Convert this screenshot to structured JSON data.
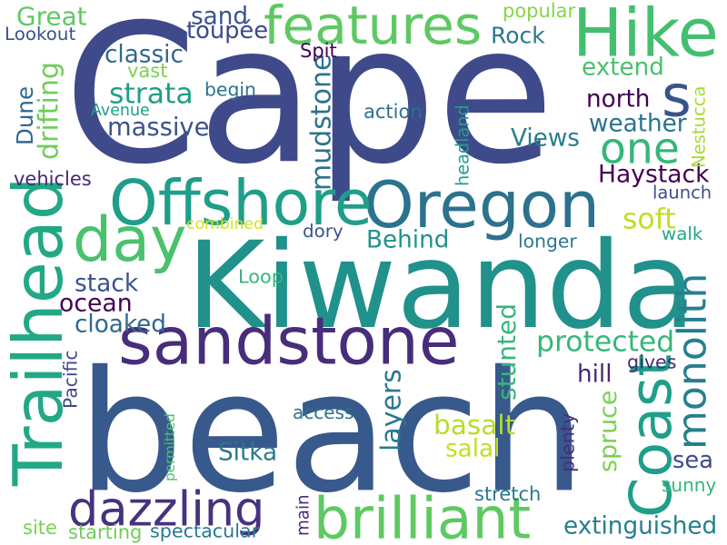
{
  "words": [
    {
      "text": "Cape",
      "color": "#3e4a89",
      "rotate": 0
    },
    {
      "text": "beach",
      "color": "#38598c",
      "rotate": 0
    },
    {
      "text": "Kiwanda",
      "color": "#21918c",
      "rotate": 0
    },
    {
      "text": "sandstone",
      "color": "#472d7b",
      "rotate": 0
    },
    {
      "text": "Trailhead",
      "color": "#22a884",
      "rotate": -90
    },
    {
      "text": "Oregon",
      "color": "#2c728e",
      "rotate": 0
    },
    {
      "text": "Hike",
      "color": "#44bf70",
      "rotate": 0
    },
    {
      "text": "brilliant",
      "color": "#5ec962",
      "rotate": 0
    },
    {
      "text": "day",
      "color": "#4ac16d",
      "rotate": 0
    },
    {
      "text": "Offshore",
      "color": "#1f9e89",
      "rotate": 0
    },
    {
      "text": "features",
      "color": "#5ec962",
      "rotate": 0
    },
    {
      "text": "Coast",
      "color": "#1f9e89",
      "rotate": -90
    },
    {
      "text": "monolith",
      "color": "#277f8e",
      "rotate": -90
    },
    {
      "text": "dazzling",
      "color": "#46327e",
      "rotate": 0
    },
    {
      "text": "one",
      "color": "#35b779",
      "rotate": 0
    },
    {
      "text": "s",
      "color": "#3b528b",
      "rotate": 0
    },
    {
      "text": "protected",
      "color": "#35b779",
      "rotate": 0
    },
    {
      "text": "extinguished",
      "color": "#277f8e",
      "rotate": 0
    },
    {
      "text": "strata",
      "color": "#1f9e89",
      "rotate": 0
    },
    {
      "text": "massive",
      "color": "#3b528b",
      "rotate": 0
    },
    {
      "text": "soft",
      "color": "#bddf26",
      "rotate": 0
    },
    {
      "text": "Haystack",
      "color": "#440154",
      "rotate": 0
    },
    {
      "text": "mudstone",
      "color": "#2c728e",
      "rotate": -90
    },
    {
      "text": "basalt",
      "color": "#b5de2b",
      "rotate": 0
    },
    {
      "text": "salal",
      "color": "#c2df23",
      "rotate": 0
    },
    {
      "text": "stunted",
      "color": "#35b779",
      "rotate": -90
    },
    {
      "text": "layers",
      "color": "#2a788e",
      "rotate": -90
    },
    {
      "text": "Great",
      "color": "#5ec962",
      "rotate": 0
    },
    {
      "text": "sand",
      "color": "#3b528b",
      "rotate": 0
    },
    {
      "text": "toupée",
      "color": "#3e4989",
      "rotate": 0
    },
    {
      "text": "classic",
      "color": "#31688e",
      "rotate": 0
    },
    {
      "text": "Rock",
      "color": "#2a788e",
      "rotate": 0
    },
    {
      "text": "extend",
      "color": "#4ac16d",
      "rotate": 0
    },
    {
      "text": "north",
      "color": "#440154",
      "rotate": 0
    },
    {
      "text": "weather",
      "color": "#2c728e",
      "rotate": 0
    },
    {
      "text": "Views",
      "color": "#277f8e",
      "rotate": 0
    },
    {
      "text": "Dune",
      "color": "#31688e",
      "rotate": -90
    },
    {
      "text": "drifting",
      "color": "#6ece58",
      "rotate": -90
    },
    {
      "text": "stack",
      "color": "#3b528b",
      "rotate": 0
    },
    {
      "text": "ocean",
      "color": "#440154",
      "rotate": 0
    },
    {
      "text": "cloaked",
      "color": "#31688e",
      "rotate": 0
    },
    {
      "text": "Behind",
      "color": "#21918c",
      "rotate": 0
    },
    {
      "text": "hill",
      "color": "#482878",
      "rotate": 0
    },
    {
      "text": "Sitka",
      "color": "#2a788e",
      "rotate": 0
    },
    {
      "text": "spruce",
      "color": "#7ad151",
      "rotate": -90
    },
    {
      "text": "sea",
      "color": "#3e4989",
      "rotate": 0
    },
    {
      "text": "Lookout",
      "color": "#3b528b",
      "rotate": 0
    },
    {
      "text": "vast",
      "color": "#7ad151",
      "rotate": 0
    },
    {
      "text": "begin",
      "color": "#2c728e",
      "rotate": 0
    },
    {
      "text": "Avenue",
      "color": "#1f9e89",
      "rotate": 0
    },
    {
      "text": "Spit",
      "color": "#440154",
      "rotate": 0
    },
    {
      "text": "popular",
      "color": "#86d549",
      "rotate": 0
    },
    {
      "text": "action",
      "color": "#2c728e",
      "rotate": 0
    },
    {
      "text": "headland",
      "color": "#1f9e89",
      "rotate": -90
    },
    {
      "text": "Nestucca",
      "color": "#a5db36",
      "rotate": -90
    },
    {
      "text": "vehicles",
      "color": "#482878",
      "rotate": 0
    },
    {
      "text": "launch",
      "color": "#3b528b",
      "rotate": 0
    },
    {
      "text": "combined",
      "color": "#d2e21b",
      "rotate": 0
    },
    {
      "text": "dory",
      "color": "#3b528b",
      "rotate": 0
    },
    {
      "text": "longer",
      "color": "#2a788e",
      "rotate": 0
    },
    {
      "text": "walk",
      "color": "#22a884",
      "rotate": 0
    },
    {
      "text": "Loop",
      "color": "#35b779",
      "rotate": 0
    },
    {
      "text": "Pacific",
      "color": "#3e4989",
      "rotate": -90
    },
    {
      "text": "gives",
      "color": "#482878",
      "rotate": 0
    },
    {
      "text": "access",
      "color": "#2c728e",
      "rotate": 0
    },
    {
      "text": "plenty",
      "color": "#472d7b",
      "rotate": -90
    },
    {
      "text": "permitted",
      "color": "#4ac16d",
      "rotate": -90
    },
    {
      "text": "sunny",
      "color": "#35b779",
      "rotate": 0
    },
    {
      "text": "stretch",
      "color": "#2a788e",
      "rotate": 0
    },
    {
      "text": "main",
      "color": "#482878",
      "rotate": -90
    },
    {
      "text": "site",
      "color": "#7ad151",
      "rotate": 0
    },
    {
      "text": "starting",
      "color": "#6ece58",
      "rotate": 0
    },
    {
      "text": "spectacular",
      "color": "#2a788e",
      "rotate": 0
    }
  ]
}
